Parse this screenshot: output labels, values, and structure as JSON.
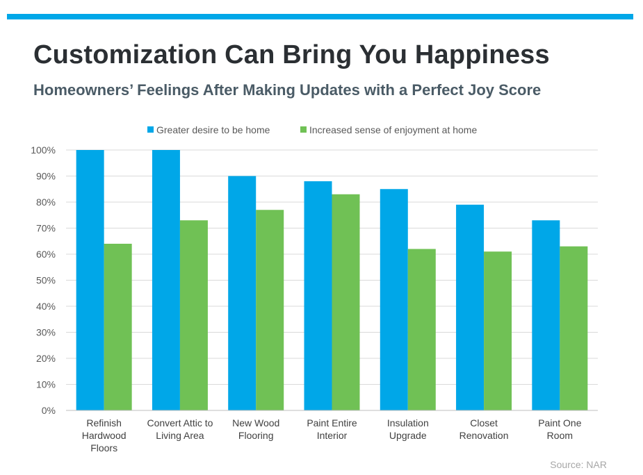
{
  "header": {
    "title": "Customization Can Bring You Happiness",
    "subtitle": "Homeowners’ Feelings After Making Updates with a Perfect Joy Score",
    "accent_color": "#00a7e8"
  },
  "source": "Source: NAR",
  "chart_data": {
    "type": "bar",
    "categories": [
      [
        "Refinish",
        "Hardwood",
        "Floors"
      ],
      [
        "Convert Attic to",
        "Living Area"
      ],
      [
        "New Wood",
        "Flooring"
      ],
      [
        "Paint Entire",
        "Interior"
      ],
      [
        "Insulation",
        "Upgrade"
      ],
      [
        "Closet",
        "Renovation"
      ],
      [
        "Paint One",
        "Room"
      ]
    ],
    "series": [
      {
        "name": "Greater desire to be home",
        "color": "#00a7e8",
        "values": [
          100,
          100,
          90,
          88,
          85,
          79,
          73
        ]
      },
      {
        "name": "Increased sense of enjoyment at home",
        "color": "#70c155",
        "values": [
          64,
          73,
          77,
          83,
          62,
          61,
          63
        ]
      }
    ],
    "y_ticks": [
      "0%",
      "10%",
      "20%",
      "30%",
      "40%",
      "50%",
      "60%",
      "70%",
      "80%",
      "90%",
      "100%"
    ],
    "ylim": [
      0,
      100
    ],
    "grid": true,
    "legend_position": "top-center"
  }
}
